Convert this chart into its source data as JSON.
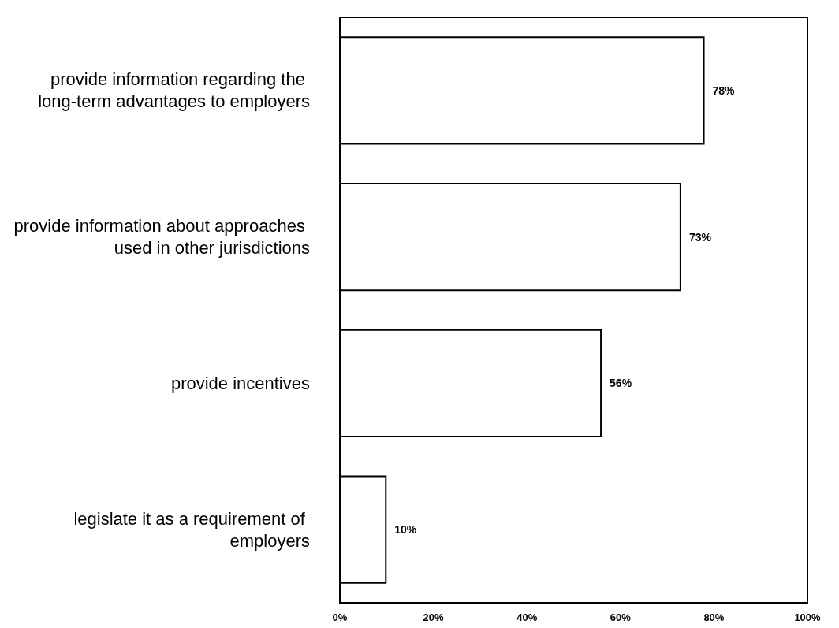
{
  "chart_data": {
    "type": "bar",
    "orientation": "horizontal",
    "categories": [
      "provide information regarding the long-term advantages to employers",
      "provide information about approaches used in other jurisdictions",
      "provide incentives",
      "legislate it as a requirement of employers"
    ],
    "values": [
      78,
      73,
      56,
      10
    ],
    "value_labels": [
      "78%",
      "73%",
      "56%",
      "10%"
    ],
    "color": "#ffffff",
    "xlim": [
      0,
      100
    ],
    "xticks": [
      {
        "value": 0,
        "label": "0%"
      },
      {
        "value": 20,
        "label": "20%"
      },
      {
        "value": 40,
        "label": "40%"
      },
      {
        "value": 60,
        "label": "60%"
      },
      {
        "value": 80,
        "label": "80%"
      },
      {
        "value": 100,
        "label": "100%"
      }
    ],
    "grid": false
  }
}
